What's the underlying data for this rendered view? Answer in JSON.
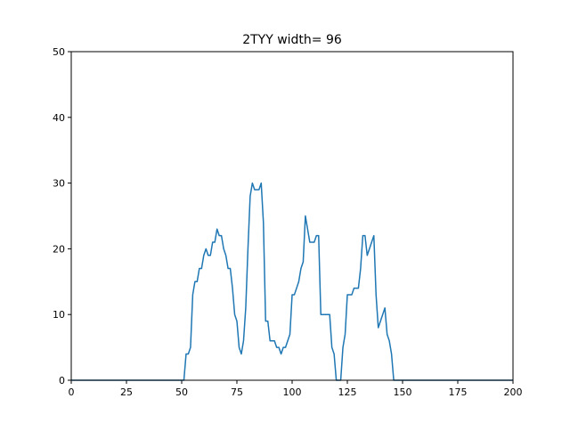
{
  "chart_data": {
    "type": "line",
    "title": "2TYY width= 96",
    "xlabel": "",
    "ylabel": "",
    "xlim": [
      0,
      200
    ],
    "ylim": [
      0,
      50
    ],
    "xticks": [
      0,
      25,
      50,
      75,
      100,
      125,
      150,
      175,
      200
    ],
    "yticks": [
      0,
      10,
      20,
      30,
      40,
      50
    ],
    "grid": false,
    "line_color": "#1f77b4",
    "series": [
      {
        "x": [
          0,
          51,
          52,
          53,
          54,
          55,
          56,
          57,
          58,
          59,
          60,
          61,
          62,
          63,
          64,
          65,
          66,
          67,
          68,
          69,
          70,
          71,
          72,
          73,
          74,
          75,
          76,
          77,
          78,
          79,
          80,
          81,
          82,
          83,
          84,
          85,
          86,
          87,
          88,
          89,
          90,
          91,
          92,
          93,
          94,
          95,
          96,
          97,
          98,
          99,
          100,
          101,
          102,
          103,
          104,
          105,
          106,
          107,
          108,
          109,
          110,
          111,
          112,
          113,
          114,
          115,
          116,
          117,
          118,
          119,
          120,
          121,
          122,
          123,
          124,
          125,
          126,
          127,
          128,
          129,
          130,
          131,
          132,
          133,
          134,
          135,
          136,
          137,
          138,
          139,
          140,
          141,
          142,
          143,
          144,
          145,
          146,
          147,
          200
        ],
        "y": [
          0,
          0,
          4,
          4,
          5,
          13,
          15,
          15,
          17,
          17,
          19,
          20,
          19,
          19,
          21,
          21,
          23,
          22,
          22,
          20,
          19,
          17,
          17,
          14,
          10,
          9,
          5,
          4,
          6,
          11,
          20,
          28,
          30,
          29,
          29,
          29,
          30,
          24,
          9,
          9,
          6,
          6,
          6,
          5,
          5,
          4,
          5,
          5,
          6,
          7,
          13,
          13,
          14,
          15,
          17,
          18,
          25,
          23,
          21,
          21,
          21,
          22,
          22,
          10,
          10,
          10,
          10,
          10,
          5,
          4,
          0,
          0,
          0,
          5,
          7,
          13,
          13,
          13,
          14,
          14,
          14,
          17,
          22,
          22,
          19,
          20,
          21,
          22,
          13,
          8,
          9,
          10,
          11,
          7,
          6,
          4,
          0,
          0,
          0
        ]
      }
    ]
  }
}
